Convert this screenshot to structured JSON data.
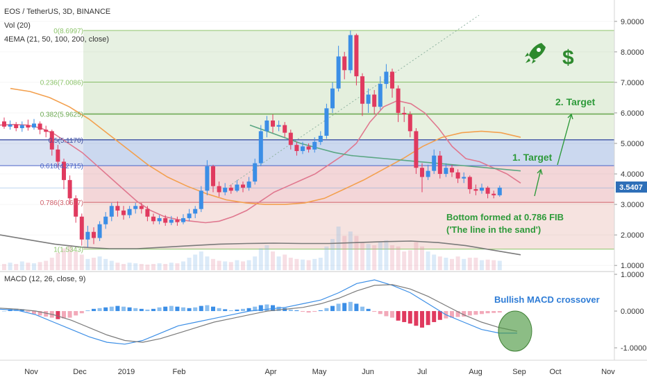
{
  "header": {
    "symbol": "EOS / TetherUS, 3D, BINANCE",
    "vol": "Vol (20)",
    "ema": "4EMA (21, 50, 100, 200, close)"
  },
  "macd_header": "MACD (12, 26, close, 9)",
  "colors": {
    "up": "#3b8ee6",
    "down": "#e03a5f",
    "ema21": "#e0788f",
    "ema50": "#f3a04e",
    "ema100": "#5aa783",
    "ema200": "#7a7a7a",
    "annot": "#2e9a3a",
    "price_label": "#2e6fb8"
  },
  "icons": [
    "rocket-icon",
    "dollar-icon"
  ],
  "price_tag": "3.5407",
  "chart_data": {
    "type": "candlestick",
    "y_axis_ticks": [
      "9.0000",
      "8.0000",
      "7.0000",
      "6.0000",
      "5.0000",
      "4.0000",
      "3.0000",
      "2.0000",
      "1.0000"
    ],
    "x_axis_ticks": [
      "Nov",
      "Dec",
      "2019",
      "Feb",
      "Apr",
      "May",
      "Jun",
      "Jul",
      "Aug",
      "Sep",
      "Oct",
      "Nov"
    ],
    "macd_axis_ticks": [
      "1.0000",
      "0.0000",
      "-1.0000"
    ],
    "fib_levels": [
      {
        "label": "0(8.6997)",
        "value": 8.6997
      },
      {
        "label": "0.236(7.0086)",
        "value": 7.0086
      },
      {
        "label": "0.382(5.9625)",
        "value": 5.9625
      },
      {
        "label": "0.5(5.1170)",
        "value": 5.117
      },
      {
        "label": "0.618(4.2715)",
        "value": 4.2715
      },
      {
        "label": "0.786(3.0677)",
        "value": 3.0677
      },
      {
        "label": "1(1.5343)",
        "value": 1.5343
      }
    ],
    "annotations": {
      "target1": "1. Target",
      "target2": "2. Target",
      "bottom_line1": "Bottom formed at 0.786 FIB",
      "bottom_line2": "('The line in the sand')",
      "macd_note": "Bullish MACD crossover"
    },
    "price_last": 3.5407,
    "ylim": [
      0.8,
      9.7
    ],
    "candles": [
      [
        5.72,
        5.55,
        5.85,
        5.48
      ],
      [
        5.55,
        5.62,
        5.75,
        5.45
      ],
      [
        5.62,
        5.5,
        5.7,
        5.4
      ],
      [
        5.5,
        5.6,
        5.72,
        5.38
      ],
      [
        5.6,
        5.52,
        5.78,
        5.42
      ],
      [
        5.52,
        5.65,
        5.8,
        5.45
      ],
      [
        5.65,
        5.45,
        5.72,
        5.3
      ],
      [
        5.45,
        5.38,
        5.58,
        5.2
      ],
      [
        5.4,
        4.8,
        5.45,
        4.6
      ],
      [
        4.8,
        4.4,
        4.95,
        4.2
      ],
      [
        4.4,
        3.8,
        4.5,
        3.5
      ],
      [
        3.8,
        3.2,
        3.95,
        3.0
      ],
      [
        3.2,
        2.6,
        3.3,
        2.4
      ],
      [
        2.6,
        1.85,
        2.7,
        1.65
      ],
      [
        1.85,
        2.1,
        2.3,
        1.6
      ],
      [
        2.1,
        1.9,
        2.25,
        1.7
      ],
      [
        1.9,
        2.35,
        2.45,
        1.8
      ],
      [
        2.35,
        2.6,
        2.75,
        2.2
      ],
      [
        2.6,
        2.95,
        3.05,
        2.45
      ],
      [
        2.95,
        2.8,
        3.1,
        2.6
      ],
      [
        2.8,
        2.65,
        2.95,
        2.5
      ],
      [
        2.65,
        2.85,
        2.95,
        2.55
      ],
      [
        2.85,
        2.95,
        3.05,
        2.7
      ],
      [
        2.95,
        2.85,
        3.05,
        2.7
      ],
      [
        2.85,
        2.6,
        2.95,
        2.45
      ],
      [
        2.6,
        2.45,
        2.7,
        2.35
      ],
      [
        2.45,
        2.55,
        2.65,
        2.35
      ],
      [
        2.55,
        2.4,
        2.65,
        2.3
      ],
      [
        2.4,
        2.5,
        2.62,
        2.32
      ],
      [
        2.5,
        2.42,
        2.6,
        2.3
      ],
      [
        2.42,
        2.55,
        2.68,
        2.35
      ],
      [
        2.55,
        2.7,
        2.85,
        2.45
      ],
      [
        2.7,
        2.85,
        2.95,
        2.55
      ],
      [
        2.85,
        3.45,
        3.6,
        2.75
      ],
      [
        3.45,
        4.25,
        4.45,
        3.3
      ],
      [
        4.25,
        3.6,
        4.3,
        3.4
      ],
      [
        3.6,
        3.4,
        3.75,
        3.25
      ],
      [
        3.4,
        3.55,
        3.7,
        3.3
      ],
      [
        3.55,
        3.45,
        3.65,
        3.35
      ],
      [
        3.45,
        3.65,
        3.8,
        3.4
      ],
      [
        3.65,
        3.55,
        3.75,
        3.4
      ],
      [
        3.55,
        3.75,
        3.9,
        3.45
      ],
      [
        3.75,
        4.35,
        4.5,
        3.65
      ],
      [
        4.35,
        5.4,
        5.6,
        4.25
      ],
      [
        5.4,
        5.75,
        5.9,
        5.2
      ],
      [
        5.75,
        5.55,
        5.95,
        5.35
      ],
      [
        5.55,
        5.6,
        5.75,
        5.4
      ],
      [
        5.6,
        5.35,
        5.7,
        5.2
      ],
      [
        5.35,
        4.95,
        5.45,
        4.8
      ],
      [
        4.95,
        4.75,
        5.05,
        4.6
      ],
      [
        4.75,
        4.9,
        5.05,
        4.65
      ],
      [
        4.9,
        4.8,
        5.0,
        4.7
      ],
      [
        4.8,
        5.05,
        5.2,
        4.7
      ],
      [
        5.05,
        5.25,
        5.4,
        4.95
      ],
      [
        5.25,
        6.15,
        6.3,
        5.15
      ],
      [
        6.15,
        6.8,
        7.0,
        6.0
      ],
      [
        6.8,
        7.85,
        8.2,
        6.7
      ],
      [
        7.85,
        7.4,
        8.0,
        7.1
      ],
      [
        7.4,
        8.55,
        8.7,
        7.3
      ],
      [
        8.55,
        7.2,
        8.6,
        6.9
      ],
      [
        7.2,
        6.3,
        7.3,
        5.9
      ],
      [
        6.3,
        6.6,
        6.8,
        6.0
      ],
      [
        6.6,
        6.2,
        6.75,
        5.95
      ],
      [
        6.2,
        6.95,
        7.2,
        6.1
      ],
      [
        6.95,
        7.35,
        7.6,
        6.8
      ],
      [
        7.35,
        6.8,
        7.45,
        6.5
      ],
      [
        6.8,
        6.0,
        6.9,
        5.7
      ],
      [
        6.0,
        5.95,
        6.2,
        5.7
      ],
      [
        5.95,
        5.4,
        6.05,
        5.2
      ],
      [
        5.4,
        4.2,
        5.5,
        4.0
      ],
      [
        4.2,
        3.9,
        4.35,
        3.4
      ],
      [
        3.9,
        4.1,
        4.3,
        3.8
      ],
      [
        4.1,
        4.6,
        4.8,
        4.0
      ],
      [
        4.6,
        4.0,
        4.75,
        3.85
      ],
      [
        4.0,
        4.2,
        4.35,
        3.9
      ],
      [
        4.2,
        4.05,
        4.3,
        3.9
      ],
      [
        4.05,
        3.85,
        4.15,
        3.7
      ],
      [
        3.85,
        3.9,
        4.05,
        3.7
      ],
      [
        3.9,
        3.5,
        3.95,
        3.35
      ],
      [
        3.5,
        3.45,
        3.65,
        3.3
      ],
      [
        3.45,
        3.55,
        3.68,
        3.35
      ],
      [
        3.55,
        3.35,
        3.6,
        3.2
      ],
      [
        3.35,
        3.3,
        3.45,
        3.2
      ],
      [
        3.3,
        3.55,
        3.62,
        3.25
      ]
    ],
    "ema21": [
      5.6,
      5.62,
      5.6,
      5.5,
      5.3,
      5.0,
      4.7,
      4.3,
      3.9,
      3.5,
      3.1,
      2.8,
      2.6,
      2.5,
      2.45,
      2.4,
      2.45,
      2.6,
      2.8,
      3.1,
      3.4,
      3.6,
      3.8,
      4.0,
      4.3,
      4.6,
      5.0,
      5.7,
      6.2,
      6.4,
      6.3,
      6.0,
      5.5,
      4.9,
      4.5,
      4.4,
      4.2,
      4.0,
      3.7
    ],
    "ema50": [
      6.8,
      6.7,
      6.5,
      6.2,
      5.8,
      5.3,
      4.8,
      4.3,
      3.9,
      3.6,
      3.35,
      3.15,
      3.05,
      3.0,
      3.0,
      3.05,
      3.2,
      3.5,
      3.8,
      4.15,
      4.5,
      4.9,
      5.2,
      5.35,
      5.4,
      5.35,
      5.2
    ],
    "ema100": [
      5.6,
      5.4,
      5.2,
      5.0,
      4.85,
      4.7,
      4.6,
      4.55,
      4.5,
      4.45,
      4.4,
      4.35,
      4.3,
      4.25,
      4.2,
      4.15,
      4.1
    ],
    "ema200": [
      2.0,
      1.85,
      1.7,
      1.6,
      1.55,
      1.55,
      1.6,
      1.65,
      1.7,
      1.72,
      1.73,
      1.72,
      1.72,
      1.75,
      1.78,
      1.8,
      1.75,
      1.65,
      1.5,
      1.35
    ],
    "volume": [
      0.1,
      0.12,
      0.1,
      0.14,
      0.12,
      0.11,
      0.13,
      0.15,
      0.2,
      0.28,
      0.35,
      0.4,
      0.3,
      0.25,
      0.18,
      0.2,
      0.22,
      0.18,
      0.15,
      0.12,
      0.1,
      0.12,
      0.11,
      0.1,
      0.09,
      0.1,
      0.11,
      0.1,
      0.12,
      0.11,
      0.14,
      0.2,
      0.25,
      0.3,
      0.22,
      0.18,
      0.15,
      0.14,
      0.13,
      0.16,
      0.14,
      0.16,
      0.22,
      0.35,
      0.4,
      0.3,
      0.22,
      0.25,
      0.2,
      0.18,
      0.17,
      0.16,
      0.18,
      0.2,
      0.38,
      0.5,
      0.7,
      0.55,
      0.62,
      0.55,
      0.45,
      0.42,
      0.4,
      0.45,
      0.48,
      0.4,
      0.38,
      0.3,
      0.32,
      0.45,
      0.38,
      0.3,
      0.25,
      0.22,
      0.2,
      0.18,
      0.22,
      0.18,
      0.2,
      0.2,
      0.16,
      0.17,
      0.16,
      0.15
    ],
    "macd_hist": [
      0.0,
      0.05,
      0.06,
      0.05,
      -0.02,
      -0.08,
      -0.12,
      -0.15,
      -0.18,
      -0.22,
      -0.2,
      -0.18,
      -0.12,
      -0.06,
      0.02,
      0.06,
      0.08,
      0.1,
      0.12,
      0.14,
      0.12,
      0.1,
      0.08,
      0.06,
      0.04,
      0.06,
      0.1,
      0.12,
      0.14,
      0.12,
      0.1,
      0.08,
      0.1,
      0.14,
      0.16,
      0.12,
      0.08,
      0.05,
      0.02,
      0.04,
      0.06,
      0.08,
      0.12,
      0.16,
      0.18,
      0.16,
      0.12,
      0.08,
      0.04,
      0.02,
      -0.02,
      -0.04,
      -0.02,
      0.02,
      0.08,
      0.14,
      0.2,
      0.22,
      0.25,
      0.2,
      0.12,
      0.06,
      -0.02,
      -0.08,
      -0.14,
      -0.18,
      -0.26,
      -0.3,
      -0.34,
      -0.4,
      -0.45,
      -0.38,
      -0.3,
      -0.24,
      -0.2,
      -0.18,
      -0.16,
      -0.15,
      -0.12,
      -0.1,
      -0.08,
      -0.06,
      -0.05,
      -0.04
    ],
    "macd_line": [
      0.05,
      0.02,
      -0.1,
      -0.3,
      -0.5,
      -0.7,
      -0.85,
      -0.9,
      -0.8,
      -0.6,
      -0.4,
      -0.3,
      -0.2,
      -0.1,
      0.0,
      0.05,
      0.1,
      0.2,
      0.3,
      0.5,
      0.75,
      0.85,
      0.7,
      0.5,
      0.2,
      -0.1,
      -0.3,
      -0.5,
      -0.6,
      -0.6
    ],
    "signal_line": [
      0.08,
      0.05,
      0.0,
      -0.1,
      -0.25,
      -0.45,
      -0.65,
      -0.8,
      -0.85,
      -0.75,
      -0.6,
      -0.45,
      -0.3,
      -0.2,
      -0.1,
      0.0,
      0.05,
      0.1,
      0.2,
      0.35,
      0.55,
      0.7,
      0.72,
      0.6,
      0.4,
      0.15,
      -0.1,
      -0.3,
      -0.45,
      -0.55
    ],
    "macd_ylim": [
      -1.3,
      1.0
    ]
  }
}
